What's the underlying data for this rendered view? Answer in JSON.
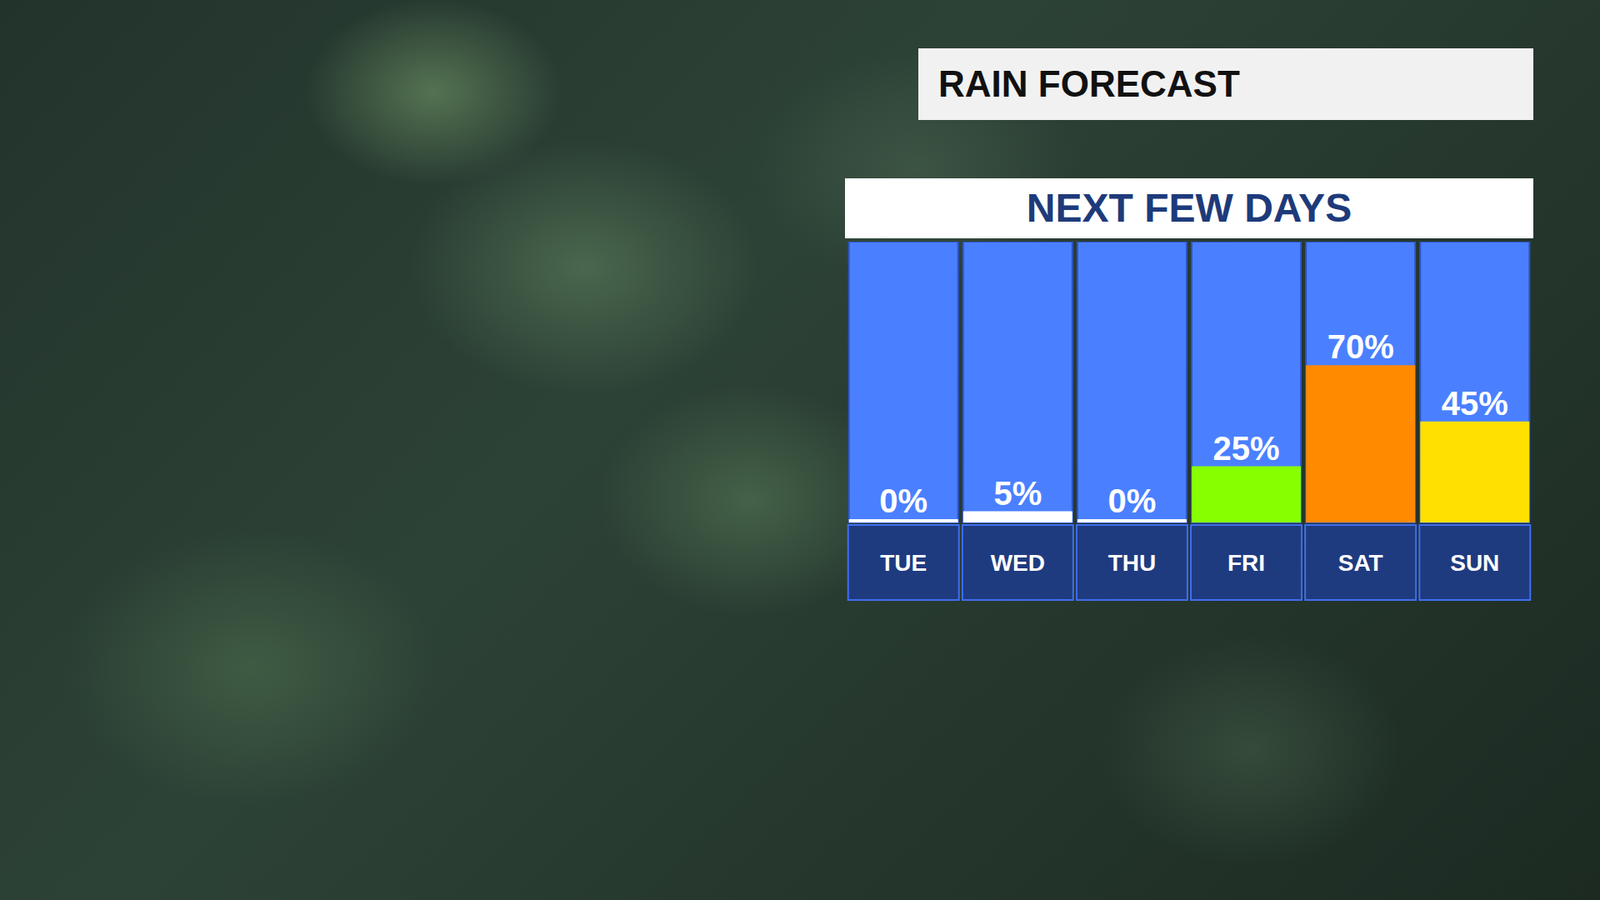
{
  "chart_data": {
    "type": "bar",
    "title": "RAIN FORECAST",
    "subtitle": "NEXT FEW DAYS",
    "categories": [
      "TUE",
      "WED",
      "THU",
      "FRI",
      "SAT",
      "SUN"
    ],
    "values": [
      0,
      5,
      0,
      25,
      70,
      45
    ],
    "value_labels": [
      "0%",
      "5%",
      "0%",
      "25%",
      "70%",
      "45%"
    ],
    "colors": [
      "#ffffff",
      "#ffffff",
      "#ffffff",
      "#88ff00",
      "#ff8a00",
      "#ffe000"
    ],
    "ylim": [
      0,
      125
    ],
    "grid": false,
    "data_labels": true,
    "tick_labels": "x"
  }
}
